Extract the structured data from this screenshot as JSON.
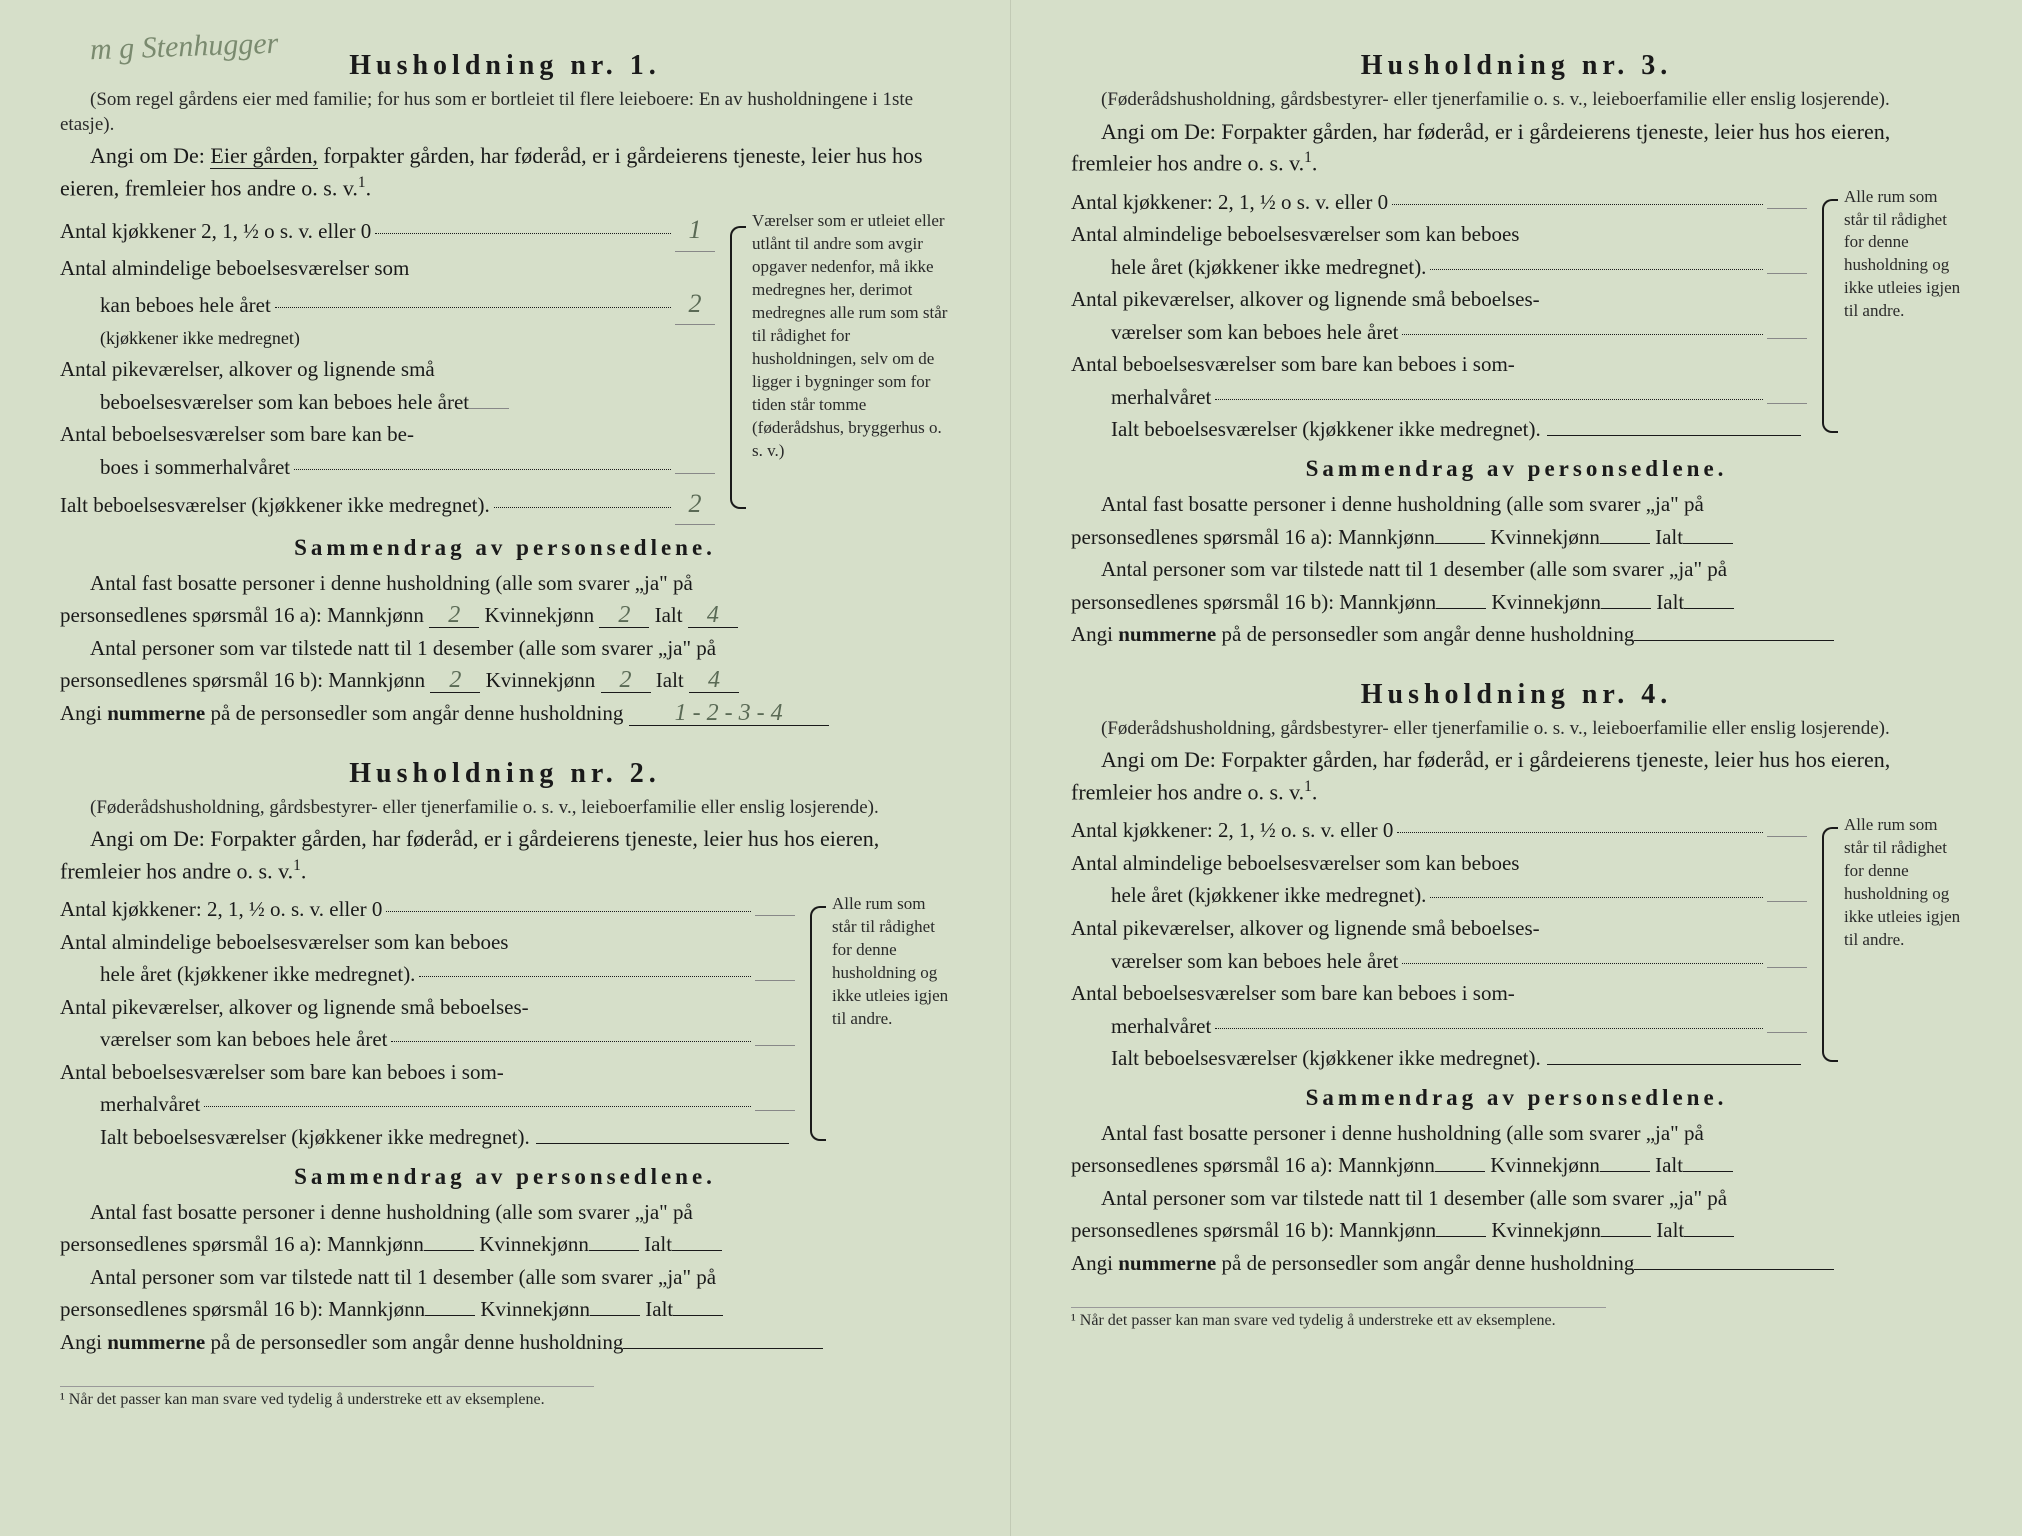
{
  "handwritten_top": "m g Stenhugger",
  "households": [
    {
      "title": "Husholdning nr. 1.",
      "paren": "(Som regel gårdens eier med familie; for hus som er bortleiet til flere leieboere: En av husholdningene i 1ste etasje).",
      "angi1": "Angi om De: ",
      "angi_under": "Eier gården,",
      "angi2": " forpakter gården, har føderåd, er i gårdeierens tjeneste, leier hus hos eieren, fremleier hos andre o. s. v.",
      "rooms": {
        "kjokken_label": "Antal kjøkkener 2, 1, ½ o s. v. eller 0",
        "kjokken_val": "1",
        "alm_label": "Antal almindelige beboelsesværelser som",
        "alm_label2": "kan beboes hele året",
        "alm_sub": "(kjøkkener ikke medregnet)",
        "alm_val": "2",
        "pike_label": "Antal pikeværelser, alkover og lignende små",
        "pike_label2": "beboelsesværelser som kan beboes hele året",
        "pike_val": "",
        "sommer_label": "Antal beboelsesværelser som bare kan be-",
        "sommer_label2": "boes i sommerhalvåret",
        "sommer_val": "",
        "ialt_label": "Ialt beboelsesværelser (kjøkkener ikke medregnet).",
        "ialt_val": "2"
      },
      "brace_text": "Værelser som er utleiet eller utlånt til andre som avgir opgaver nedenfor, må ikke medregnes her, derimot medregnes alle rum som står til rådighet for husholdningen, selv om de ligger i bygninger som for tiden står tomme (føderådshus, bryggerhus o. s. v.)",
      "summary_title": "Sammendrag av personsedlene.",
      "sum1a": "Antal fast bosatte personer i denne husholdning (alle som svarer „ja\" på",
      "sum1b": "personsedlenes spørsmål 16 a): Mannkjønn",
      "m16a": "2",
      "k16a": "2",
      "i16a": "4",
      "sum2a": "Antal personer som var tilstede natt til 1 desember (alle som svarer „ja\" på",
      "sum2b": "personsedlenes spørsmål 16 b): Mannkjønn",
      "m16b": "2",
      "k16b": "2",
      "i16b": "4",
      "numline": "Angi ",
      "numbold": "nummerne",
      "numrest": " på de personsedler som angår denne husholdning",
      "numval": "1 - 2 - 3 - 4"
    },
    {
      "title": "Husholdning nr. 2.",
      "paren": "(Føderådshusholdning, gårdsbestyrer- eller tjenerfamilie o. s. v., leieboerfamilie eller enslig losjerende).",
      "angi1": "Angi om De: Forpakter gården, har føderåd, er i gårdeierens tjeneste, leier hus hos eieren, fremleier hos andre o. s. v.",
      "rooms": {
        "kjokken_label": "Antal kjøkkener: 2, 1, ½ o. s. v. eller 0",
        "alm_label": "Antal almindelige beboelsesværelser som kan beboes",
        "alm_label2": "hele året (kjøkkener ikke medregnet).",
        "pike_label": "Antal pikeværelser, alkover og lignende små beboelses-",
        "pike_label2": "værelser som kan beboes hele året",
        "sommer_label": "Antal beboelsesværelser som bare kan beboes i som-",
        "sommer_label2": "merhalvåret",
        "ialt_label": "Ialt beboelsesværelser (kjøkkener ikke medregnet)."
      },
      "brace_text": "Alle rum som står til rådighet for denne husholdning og ikke utleies igjen til andre.",
      "summary_title": "Sammendrag av personsedlene.",
      "sum1a": "Antal fast bosatte personer i denne husholdning (alle som svarer „ja\" på",
      "sum1b": "personsedlenes spørsmål 16 a): Mannkjønn",
      "sum2a": "Antal personer som var tilstede natt til 1 desember (alle som svarer „ja\" på",
      "sum2b": "personsedlenes spørsmål 16 b): Mannkjønn",
      "numline": "Angi ",
      "numbold": "nummerne",
      "numrest": " på de personsedler som angår denne husholdning"
    },
    {
      "title": "Husholdning nr. 3.",
      "paren": "(Føderådshusholdning, gårdsbestyrer- eller tjenerfamilie o. s. v., leieboerfamilie eller enslig losjerende).",
      "angi1": "Angi om De: Forpakter gården, har føderåd, er i gårdeierens tjeneste, leier hus hos eieren, fremleier hos andre o. s. v.",
      "rooms": {
        "kjokken_label": "Antal kjøkkener: 2, 1, ½ o s. v. eller 0",
        "alm_label": "Antal almindelige beboelsesværelser som kan beboes",
        "alm_label2": "hele året (kjøkkener ikke medregnet).",
        "pike_label": "Antal pikeværelser, alkover og lignende små beboelses-",
        "pike_label2": "værelser som kan beboes hele året",
        "sommer_label": "Antal beboelsesværelser som bare kan beboes i som-",
        "sommer_label2": "merhalvåret",
        "ialt_label": "Ialt beboelsesværelser (kjøkkener ikke medregnet)."
      },
      "brace_text": "Alle rum som står til rådighet for denne husholdning og ikke utleies igjen til andre.",
      "summary_title": "Sammendrag av personsedlene.",
      "sum1a": "Antal fast bosatte personer i denne husholdning (alle som svarer „ja\" på",
      "sum1b": "personsedlenes spørsmål 16 a): Mannkjønn",
      "sum2a": "Antal personer som var tilstede natt til 1 desember (alle som svarer „ja\" på",
      "sum2b": "personsedlenes spørsmål 16 b): Mannkjønn",
      "numline": "Angi ",
      "numbold": "nummerne",
      "numrest": " på de personsedler som angår denne husholdning"
    },
    {
      "title": "Husholdning nr. 4.",
      "paren": "(Føderådshusholdning, gårdsbestyrer- eller tjenerfamilie o. s. v., leieboerfamilie eller enslig losjerende).",
      "angi1": "Angi om De: Forpakter gården, har føderåd, er i gårdeierens tjeneste, leier hus hos eieren, fremleier hos andre o. s. v.",
      "rooms": {
        "kjokken_label": "Antal kjøkkener: 2, 1, ½ o. s. v. eller 0",
        "alm_label": "Antal almindelige beboelsesværelser som kan beboes",
        "alm_label2": "hele året (kjøkkener ikke medregnet).",
        "pike_label": "Antal pikeværelser, alkover og lignende små beboelses-",
        "pike_label2": "værelser som kan beboes hele året",
        "sommer_label": "Antal beboelsesværelser som bare kan beboes i som-",
        "sommer_label2": "merhalvåret",
        "ialt_label": "Ialt beboelsesværelser (kjøkkener ikke medregnet)."
      },
      "brace_text": "Alle rum som står til rådighet for denne husholdning og ikke utleies igjen til andre.",
      "summary_title": "Sammendrag av personsedlene.",
      "sum1a": "Antal fast bosatte personer i denne husholdning (alle som svarer „ja\" på",
      "sum1b": "personsedlenes spørsmål 16 a): Mannkjønn",
      "sum2a": "Antal personer som var tilstede natt til 1 desember (alle som svarer „ja\" på",
      "sum2b": "personsedlenes spørsmål 16 b): Mannkjønn",
      "numline": "Angi ",
      "numbold": "nummerne",
      "numrest": " på de personsedler som angår denne husholdning"
    }
  ],
  "labels": {
    "kvinne": "Kvinnekjønn",
    "ialt": "Ialt"
  },
  "footnote": "¹ Når det passer kan man svare ved tydelig å understreke ett av eksemplene.",
  "colors": {
    "bg": "#d6dfc9",
    "text": "#1a1a1a",
    "handwriting": "#5a6a55"
  }
}
